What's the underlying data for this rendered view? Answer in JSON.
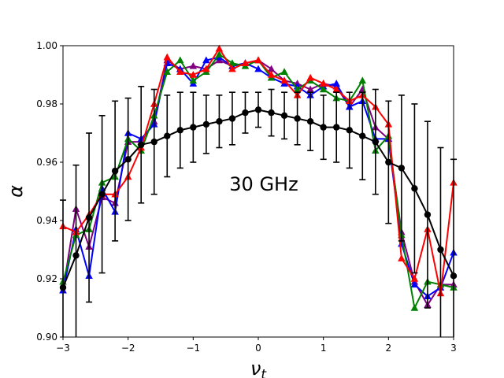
{
  "chart_data": {
    "type": "line",
    "title": "",
    "annotation": "30 GHz",
    "xlabel": "νt",
    "xlabel_main": "ν",
    "xlabel_sub": "t",
    "ylabel": "α",
    "xlim": [
      -3,
      3
    ],
    "ylim": [
      0.9,
      1.0
    ],
    "xticks": [
      -3,
      -2,
      -1,
      0,
      1,
      2,
      3
    ],
    "xtick_labels": [
      "−3",
      "−2",
      "−1",
      "0",
      "1",
      "2",
      "3"
    ],
    "yticks": [
      0.9,
      0.92,
      0.94,
      0.96,
      0.98,
      1.0
    ],
    "ytick_labels": [
      "0.90",
      "0.92",
      "0.94",
      "0.96",
      "0.98",
      "1.00"
    ],
    "x": [
      -3.0,
      -2.8,
      -2.6,
      -2.4,
      -2.2,
      -2.0,
      -1.8,
      -1.6,
      -1.4,
      -1.2,
      -1.0,
      -0.8,
      -0.6,
      -0.4,
      -0.2,
      0.0,
      0.2,
      0.4,
      0.6,
      0.8,
      1.0,
      1.2,
      1.4,
      1.6,
      1.8,
      2.0,
      2.2,
      2.4,
      2.6,
      2.8,
      3.0
    ],
    "series": [
      {
        "name": "purple",
        "color": "#800080",
        "marker": "triangle",
        "values": [
          0.916,
          0.944,
          0.931,
          0.948,
          0.946,
          0.967,
          0.967,
          0.974,
          0.995,
          0.992,
          0.993,
          0.992,
          0.995,
          0.993,
          0.994,
          0.995,
          0.992,
          0.988,
          0.987,
          0.985,
          0.987,
          0.986,
          0.979,
          0.985,
          0.972,
          0.968,
          0.936,
          0.919,
          0.911,
          0.918,
          0.918
        ]
      },
      {
        "name": "blue",
        "color": "#0000ff",
        "marker": "triangle",
        "values": [
          0.916,
          0.937,
          0.921,
          0.951,
          0.943,
          0.97,
          0.968,
          0.973,
          0.994,
          0.992,
          0.987,
          0.995,
          0.996,
          0.993,
          0.994,
          0.992,
          0.989,
          0.987,
          0.986,
          0.983,
          0.986,
          0.987,
          0.979,
          0.981,
          0.968,
          0.968,
          0.932,
          0.918,
          0.914,
          0.917,
          0.929
        ]
      },
      {
        "name": "green",
        "color": "#008000",
        "marker": "triangle",
        "values": [
          0.919,
          0.935,
          0.937,
          0.953,
          0.955,
          0.968,
          0.964,
          0.976,
          0.991,
          0.995,
          0.988,
          0.991,
          0.997,
          0.994,
          0.993,
          0.995,
          0.989,
          0.991,
          0.985,
          0.988,
          0.985,
          0.982,
          0.981,
          0.988,
          0.964,
          0.969,
          0.935,
          0.91,
          0.919,
          0.918,
          0.917
        ]
      },
      {
        "name": "red",
        "color": "#ff0000",
        "marker": "triangle",
        "values": [
          0.938,
          0.936,
          0.942,
          0.949,
          0.949,
          0.955,
          0.965,
          0.98,
          0.996,
          0.991,
          0.99,
          0.992,
          0.999,
          0.992,
          0.994,
          0.995,
          0.99,
          0.988,
          0.983,
          0.989,
          0.987,
          0.985,
          0.981,
          0.983,
          0.979,
          0.973,
          0.927,
          0.92,
          0.937,
          0.915,
          0.953
        ]
      },
      {
        "name": "black",
        "color": "#000000",
        "marker": "circle",
        "error_bars": true,
        "values": [
          0.917,
          0.928,
          0.941,
          0.949,
          0.957,
          0.961,
          0.966,
          0.967,
          0.969,
          0.971,
          0.972,
          0.973,
          0.974,
          0.975,
          0.977,
          0.978,
          0.977,
          0.976,
          0.975,
          0.974,
          0.972,
          0.972,
          0.971,
          0.969,
          0.967,
          0.96,
          0.958,
          0.951,
          0.942,
          0.93,
          0.921
        ],
        "errors": [
          0.03,
          0.031,
          0.029,
          0.027,
          0.024,
          0.021,
          0.02,
          0.018,
          0.014,
          0.013,
          0.012,
          0.01,
          0.009,
          0.009,
          0.007,
          0.006,
          0.008,
          0.008,
          0.009,
          0.01,
          0.011,
          0.012,
          0.013,
          0.015,
          0.018,
          0.021,
          0.025,
          0.029,
          0.032,
          0.035,
          0.04
        ]
      }
    ]
  }
}
